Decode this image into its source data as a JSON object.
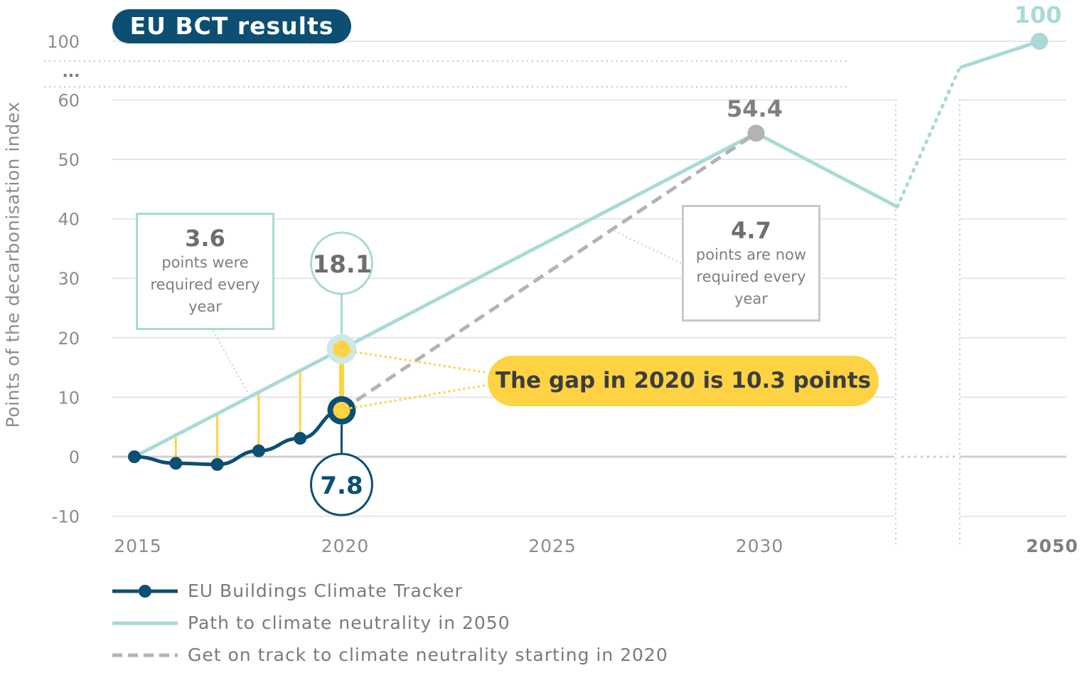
{
  "badge": "EU BCT results",
  "y_axis_label": "Points of the decarbonisation index",
  "y_break_label": "...",
  "annotations": {
    "past_rate_value": "3.6",
    "past_rate_text": "points were required every year",
    "new_rate_value": "4.7",
    "new_rate_text": "points are now required every year",
    "gap_text": "The gap in 2020 is 10.3 points",
    "point_2020_target": "18.1",
    "point_2020_actual": "7.8",
    "point_2030": "54.4",
    "point_2050": "100"
  },
  "legend": [
    {
      "label": "EU Buildings Climate Tracker",
      "style": "line-marker",
      "color": "#0d4f73"
    },
    {
      "label": "Path to climate neutrality in 2050",
      "style": "line",
      "color": "#a9dad6"
    },
    {
      "label": "Get on track to climate neutrality starting in 2020",
      "style": "dashed",
      "color": "#b3b3b3"
    }
  ],
  "colors": {
    "tracker": "#0d4f73",
    "path": "#a9dad6",
    "track": "#b3b3b3",
    "gap": "#fdd344",
    "grid": "#e6e6e6"
  },
  "chart_data": {
    "type": "line",
    "x_ticks": [
      "2015",
      "2020",
      "2025",
      "2030",
      "2050"
    ],
    "y_ticks": [
      "100",
      "60",
      "50",
      "40",
      "30",
      "20",
      "10",
      "0",
      "-10"
    ],
    "ylabel": "Points of the decarbonisation index",
    "series": [
      {
        "name": "EU Buildings Climate Tracker",
        "x": [
          2015,
          2016,
          2017,
          2018,
          2019,
          2020
        ],
        "y": [
          0,
          -1.1,
          -1.3,
          1.0,
          3.1,
          7.8
        ]
      },
      {
        "name": "Path to climate neutrality in 2050",
        "x": [
          2015,
          2020,
          2030,
          2050
        ],
        "y": [
          0,
          18.1,
          54.4,
          100
        ]
      },
      {
        "name": "Get on track to climate neutrality starting in 2020",
        "x": [
          2020,
          2030
        ],
        "y": [
          7.8,
          54.4
        ]
      }
    ],
    "gap_bars": {
      "x": [
        2016,
        2017,
        2018,
        2019,
        2020
      ],
      "lower": [
        -1.1,
        -1.3,
        1.0,
        3.1,
        7.8
      ],
      "upper": [
        3.6,
        7.2,
        10.9,
        14.5,
        18.1
      ]
    }
  }
}
